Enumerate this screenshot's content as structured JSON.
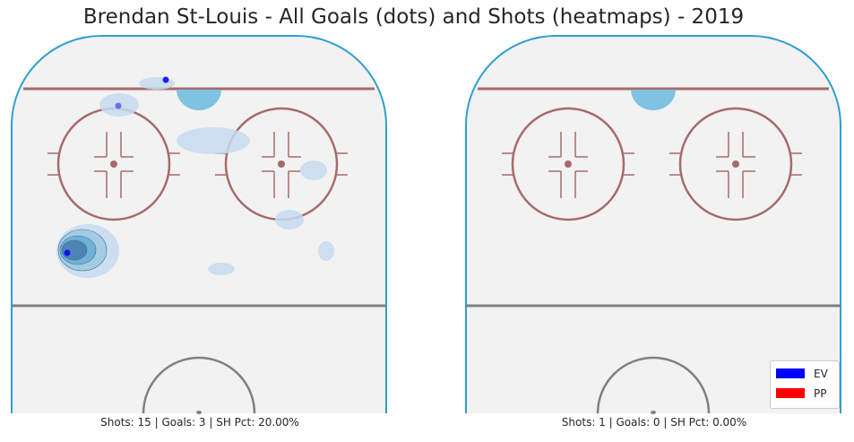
{
  "chart_data": {
    "type": "scatter",
    "title": "Brendan St-Louis - All Goals (dots) and Shots (heatmaps) - 2019",
    "legend": {
      "placement": "lower-right",
      "entries": [
        {
          "label": "EV",
          "color": "#0000ff"
        },
        {
          "label": "PP",
          "color": "#ff0000"
        }
      ]
    },
    "panels": [
      {
        "caption": "Shots: 15 | Goals: 3 | SH Pct: 20.00%",
        "goals": [
          {
            "x": 172,
            "y": 89,
            "strength": "EV"
          },
          {
            "x": 119,
            "y": 118,
            "strength": "EV"
          },
          {
            "x": 62,
            "y": 282,
            "strength": "EV"
          }
        ],
        "heat": [
          {
            "x": 162,
            "y": 93,
            "rx": 20,
            "ry": 7,
            "level": 1
          },
          {
            "x": 120,
            "y": 117,
            "rx": 22,
            "ry": 13,
            "level": 1
          },
          {
            "x": 225,
            "y": 157,
            "rx": 41,
            "ry": 15,
            "level": 1
          },
          {
            "x": 337,
            "y": 190,
            "rx": 15,
            "ry": 11,
            "level": 1
          },
          {
            "x": 310,
            "y": 245,
            "rx": 16,
            "ry": 11,
            "level": 1
          },
          {
            "x": 351,
            "y": 280,
            "rx": 9,
            "ry": 11,
            "level": 1
          },
          {
            "x": 234,
            "y": 300,
            "rx": 15,
            "ry": 7,
            "level": 1
          },
          {
            "x": 85,
            "y": 280,
            "rx": 35,
            "ry": 30,
            "level": 1
          },
          {
            "x": 79,
            "y": 279,
            "rx": 27,
            "ry": 23,
            "level": 2
          },
          {
            "x": 74,
            "y": 279,
            "rx": 20,
            "ry": 16,
            "level": 3
          },
          {
            "x": 70,
            "y": 279,
            "rx": 14,
            "ry": 11,
            "level": 4
          }
        ]
      },
      {
        "caption": "Shots: 1 | Goals: 0 | SH Pct: 0.00%",
        "goals": [],
        "heat": []
      }
    ],
    "colors": {
      "heat_levels": [
        "#c6dbef",
        "#9ecae1",
        "#6baed6",
        "#4a7fb0"
      ],
      "rink_board": "#2e9fd0",
      "rink_ice": "#f2f2f2",
      "goal_line": "#a76a6a",
      "faceoff": "#a76a6a",
      "blue_line": "#808080",
      "crease": "#7ec4e2"
    }
  }
}
